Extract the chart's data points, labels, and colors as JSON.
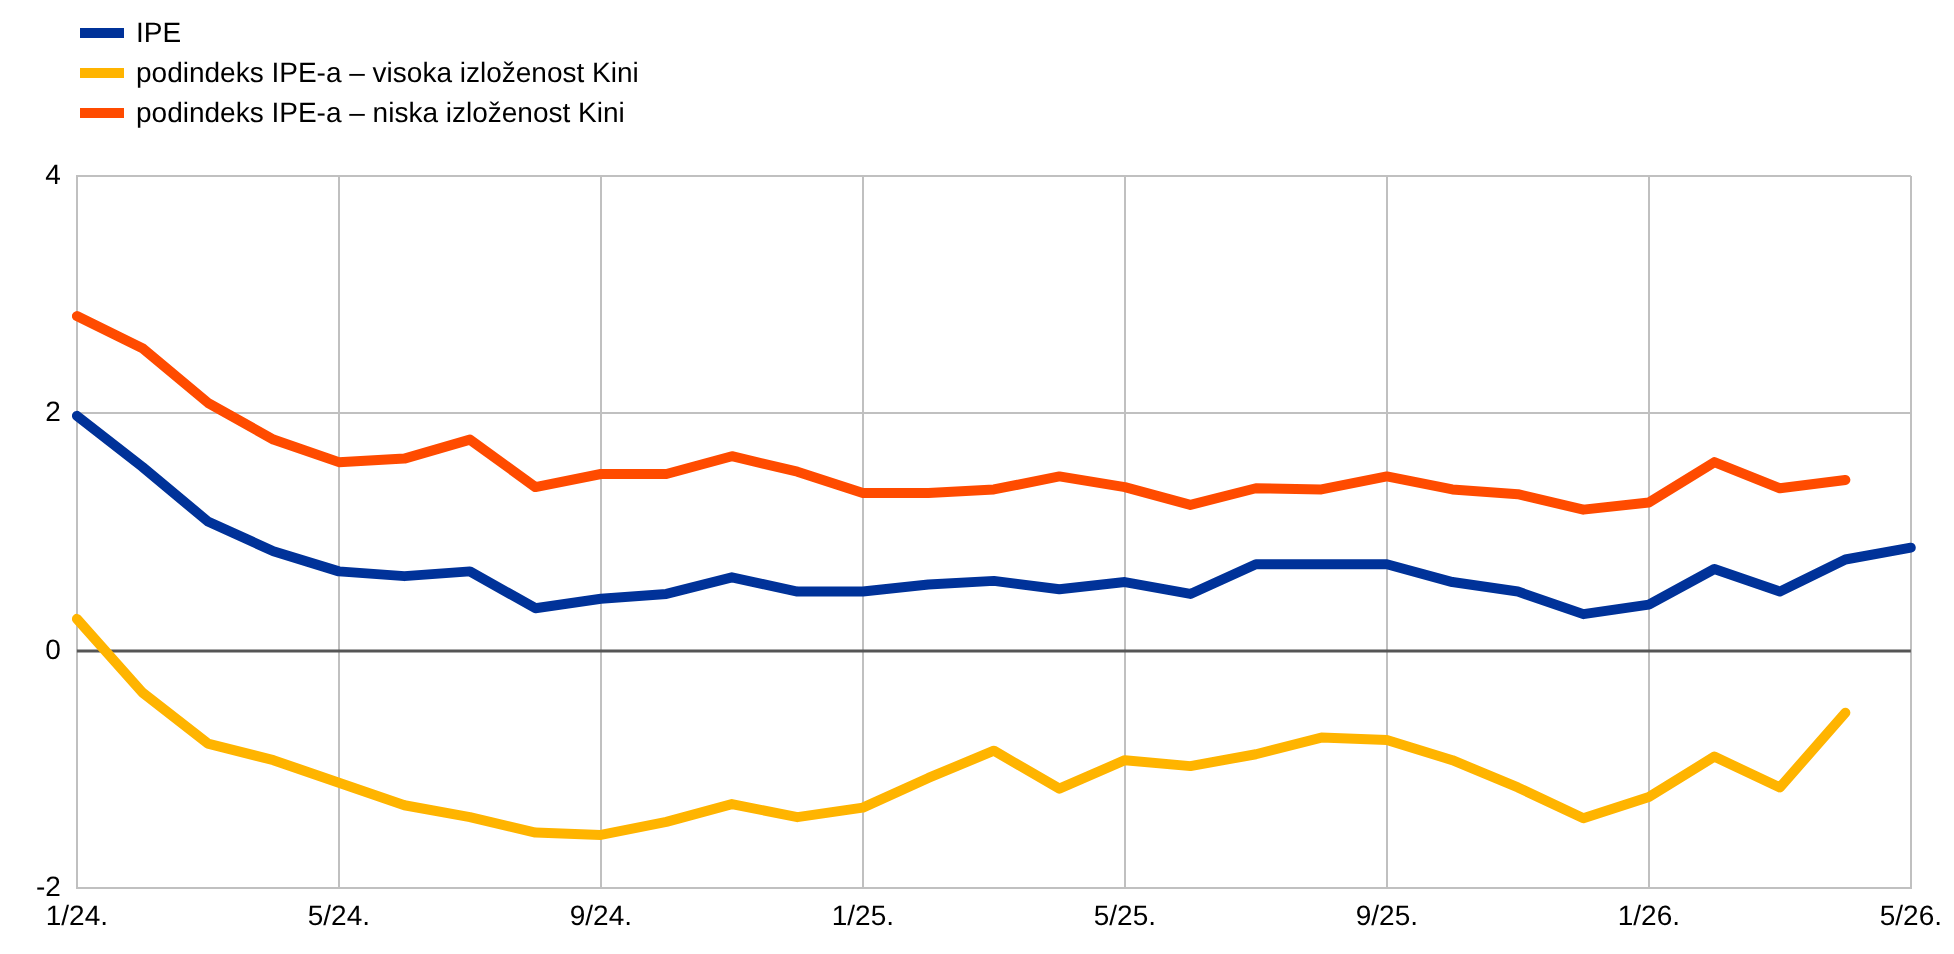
{
  "chart_data": {
    "type": "line",
    "categories": [
      "1/24.",
      null,
      null,
      null,
      "5/24.",
      null,
      null,
      null,
      "9/24.",
      null,
      null,
      null,
      "1/25.",
      null,
      null,
      null,
      "5/25.",
      null,
      null,
      null,
      "9/25.",
      null,
      null,
      null,
      "1/26.",
      null,
      null,
      null,
      "5/26."
    ],
    "series": [
      {
        "name": "IPE",
        "color": "#003299",
        "values": [
          1.98,
          1.55,
          1.09,
          0.84,
          0.67,
          0.63,
          0.67,
          0.36,
          0.44,
          0.48,
          0.62,
          0.5,
          0.5,
          0.56,
          0.59,
          0.52,
          0.58,
          0.48,
          0.73,
          0.73,
          0.73,
          0.58,
          0.5,
          0.31,
          0.39,
          0.69,
          0.5,
          0.77,
          0.87
        ]
      },
      {
        "name": "podindeks IPE-a – visoka izloženost Kini",
        "color": "#ffb400",
        "values": [
          0.27,
          -0.35,
          -0.78,
          -0.92,
          -1.11,
          -1.3,
          -1.4,
          -1.53,
          -1.55,
          -1.44,
          -1.29,
          -1.4,
          -1.32,
          -1.07,
          -0.84,
          -1.16,
          -0.92,
          -0.97,
          -0.87,
          -0.73,
          -0.75,
          -0.92,
          -1.15,
          -1.41,
          -1.23,
          -0.89,
          -1.15,
          -0.52,
          null
        ]
      },
      {
        "name": "podindeks IPE-a – niska izloženost Kini",
        "color": "#ff4b00",
        "values": [
          2.82,
          2.55,
          2.09,
          1.78,
          1.59,
          1.62,
          1.78,
          1.38,
          1.49,
          1.49,
          1.64,
          1.51,
          1.33,
          1.33,
          1.36,
          1.47,
          1.38,
          1.23,
          1.37,
          1.36,
          1.47,
          1.36,
          1.32,
          1.19,
          1.25,
          1.59,
          1.37,
          1.44,
          null
        ]
      }
    ],
    "ref_lines": [
      {
        "axis": "y",
        "value": 0,
        "color": "#555555"
      }
    ],
    "ylim": [
      -2,
      4
    ],
    "yticks": [
      -2,
      0,
      2,
      4
    ],
    "grid": true,
    "legend": "top left",
    "marker": "none",
    "line_style": "solid"
  }
}
